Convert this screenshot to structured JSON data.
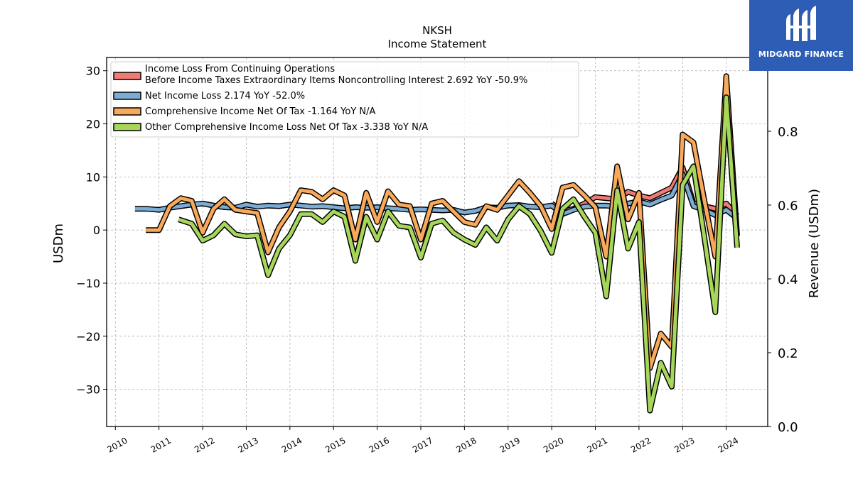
{
  "brand": {
    "name": "MIDGARD FINANCE",
    "logo_icon": "midgard-finance-logo-icon",
    "bg_color": "#2d5db4"
  },
  "chart_data": {
    "type": "line",
    "title": "NKSH",
    "subtitle": "Income Statement",
    "ylabel": "USDm",
    "y2label": "Revenue (USDm)",
    "ylim": [
      -37,
      32.5
    ],
    "y2lim": [
      0,
      1.0
    ],
    "xlim": [
      2009.8,
      2024.95
    ],
    "yticks": [
      30,
      20,
      10,
      0,
      -10,
      -20,
      -30
    ],
    "ytick_labels": [
      "30",
      "20",
      "10",
      "0",
      "−10",
      "−20",
      "−30"
    ],
    "y2ticks": [
      0.8,
      0.6,
      0.4,
      0.2,
      0.0
    ],
    "y2tick_labels": [
      "0.8",
      "0.6",
      "0.4",
      "0.2",
      "0.0"
    ],
    "xticks": [
      2010,
      2011,
      2012,
      2013,
      2014,
      2015,
      2016,
      2017,
      2018,
      2019,
      2020,
      2021,
      2022,
      2023,
      2024
    ],
    "xtick_labels": [
      "2010",
      "2011",
      "2012",
      "2013",
      "2014",
      "2015",
      "2016",
      "2017",
      "2018",
      "2019",
      "2020",
      "2021",
      "2022",
      "2023",
      "2024"
    ],
    "grid": true,
    "legend_position": "top-left",
    "series": [
      {
        "name": "Income Loss From Continuing Operations\nBefore Income Taxes Extraordinary Items Noncontrolling Interest  2.692 YoY -50.9%",
        "color": "#f07a74",
        "x": [
          2020.0,
          2020.25,
          2020.5,
          2020.75,
          2021.0,
          2021.25,
          2021.5,
          2021.75,
          2022.0,
          2022.25,
          2022.5,
          2022.75,
          2023.0,
          2023.25,
          2023.5,
          2023.75,
          2024.0,
          2024.25
        ],
        "y": [
          5.0,
          3.5,
          4.0,
          5.0,
          6.2,
          6.0,
          5.8,
          7.2,
          6.5,
          6.0,
          7.0,
          8.0,
          11.8,
          5.0,
          4.5,
          4.0,
          5.0,
          2.7
        ]
      },
      {
        "name": "Net Income Loss  2.174 YoY -52.0%",
        "color": "#7bacd4",
        "x": [
          2010.45,
          2010.7,
          2011.0,
          2011.25,
          2011.5,
          2011.75,
          2012.0,
          2012.25,
          2012.5,
          2012.75,
          2013.0,
          2013.25,
          2013.5,
          2013.75,
          2014.0,
          2014.25,
          2014.5,
          2014.75,
          2015.0,
          2015.25,
          2015.5,
          2015.75,
          2016.0,
          2016.25,
          2016.5,
          2016.75,
          2017.0,
          2017.25,
          2017.5,
          2017.75,
          2018.0,
          2018.25,
          2018.5,
          2018.75,
          2019.0,
          2019.25,
          2019.5,
          2019.75,
          2020.0,
          2020.25,
          2020.5,
          2020.75,
          2021.0,
          2021.25,
          2021.5,
          2021.75,
          2022.0,
          2022.25,
          2022.5,
          2022.75,
          2023.0,
          2023.25,
          2023.5,
          2023.75,
          2024.0,
          2024.25
        ],
        "y": [
          4.0,
          4.0,
          3.8,
          4.2,
          4.5,
          4.8,
          5.0,
          4.6,
          4.3,
          4.2,
          4.8,
          4.4,
          4.6,
          4.5,
          4.8,
          4.6,
          4.4,
          4.5,
          4.3,
          4.1,
          4.3,
          4.2,
          4.3,
          4.1,
          4.0,
          3.8,
          3.9,
          3.8,
          3.7,
          3.8,
          3.3,
          3.6,
          4.3,
          4.2,
          4.6,
          4.7,
          4.4,
          4.3,
          4.6,
          3.0,
          3.8,
          4.4,
          4.6,
          4.6,
          4.4,
          5.0,
          5.4,
          4.8,
          5.7,
          6.5,
          10.5,
          4.5,
          3.8,
          2.8,
          3.8,
          2.2
        ]
      },
      {
        "name": "Comprehensive Income Net Of Tax  -1.164 YoY N/A",
        "color": "#f8a95a",
        "x": [
          2010.7,
          2011.0,
          2011.25,
          2011.5,
          2011.75,
          2012.0,
          2012.25,
          2012.5,
          2012.75,
          2013.0,
          2013.25,
          2013.5,
          2013.75,
          2014.0,
          2014.25,
          2014.5,
          2014.75,
          2015.0,
          2015.25,
          2015.5,
          2015.75,
          2016.0,
          2016.25,
          2016.5,
          2016.75,
          2017.0,
          2017.25,
          2017.5,
          2017.75,
          2018.0,
          2018.25,
          2018.5,
          2018.75,
          2019.0,
          2019.25,
          2019.5,
          2019.75,
          2020.0,
          2020.25,
          2020.5,
          2020.75,
          2021.0,
          2021.25,
          2021.5,
          2021.75,
          2022.0,
          2022.25,
          2022.5,
          2022.75,
          2023.0,
          2023.25,
          2023.5,
          2023.75,
          2024.0,
          2024.25
        ],
        "y": [
          0.0,
          0.0,
          4.5,
          6.0,
          5.5,
          -0.5,
          4.0,
          5.8,
          3.8,
          3.5,
          3.2,
          -4.2,
          0.5,
          3.5,
          7.5,
          7.2,
          5.8,
          7.5,
          6.5,
          -1.8,
          7.0,
          1.5,
          7.3,
          4.8,
          4.5,
          -1.8,
          5.0,
          5.5,
          3.5,
          1.5,
          1.0,
          4.5,
          3.8,
          6.5,
          9.2,
          7.0,
          4.5,
          0.2,
          8.0,
          8.5,
          6.5,
          4.3,
          -5.0,
          12.0,
          2.0,
          7.0,
          -26.0,
          -19.5,
          -22.0,
          18.0,
          16.5,
          5.5,
          -5.0,
          29.0,
          -1.1
        ]
      },
      {
        "name": "Other Comprehensive Income Loss Net Of Tax  -3.338 YoY N/A",
        "color": "#a6d75b",
        "x": [
          2011.45,
          2011.75,
          2012.0,
          2012.25,
          2012.5,
          2012.75,
          2013.0,
          2013.25,
          2013.5,
          2013.75,
          2014.0,
          2014.25,
          2014.5,
          2014.75,
          2015.0,
          2015.25,
          2015.5,
          2015.75,
          2016.0,
          2016.25,
          2016.5,
          2016.75,
          2017.0,
          2017.25,
          2017.5,
          2017.75,
          2018.0,
          2018.25,
          2018.5,
          2018.75,
          2019.0,
          2019.25,
          2019.5,
          2019.75,
          2020.0,
          2020.25,
          2020.5,
          2020.75,
          2021.0,
          2021.25,
          2021.5,
          2021.75,
          2022.0,
          2022.25,
          2022.5,
          2022.75,
          2023.0,
          2023.25,
          2023.5,
          2023.75,
          2024.0,
          2024.25
        ],
        "y": [
          2.0,
          1.2,
          -2.0,
          -1.0,
          1.2,
          -0.8,
          -1.2,
          -1.0,
          -8.5,
          -3.5,
          -1.0,
          3.0,
          3.0,
          1.5,
          3.5,
          2.5,
          -5.8,
          2.5,
          -1.8,
          3.5,
          0.8,
          0.5,
          -5.2,
          1.2,
          1.8,
          -0.5,
          -1.8,
          -2.8,
          0.5,
          -2.0,
          2.0,
          4.5,
          3.0,
          -0.2,
          -4.3,
          4.0,
          5.8,
          2.5,
          -0.5,
          -12.5,
          7.5,
          -3.5,
          1.5,
          -34.0,
          -25.0,
          -29.5,
          8.5,
          12.0,
          -1.5,
          -15.5,
          25.0,
          -3.3
        ]
      }
    ]
  }
}
